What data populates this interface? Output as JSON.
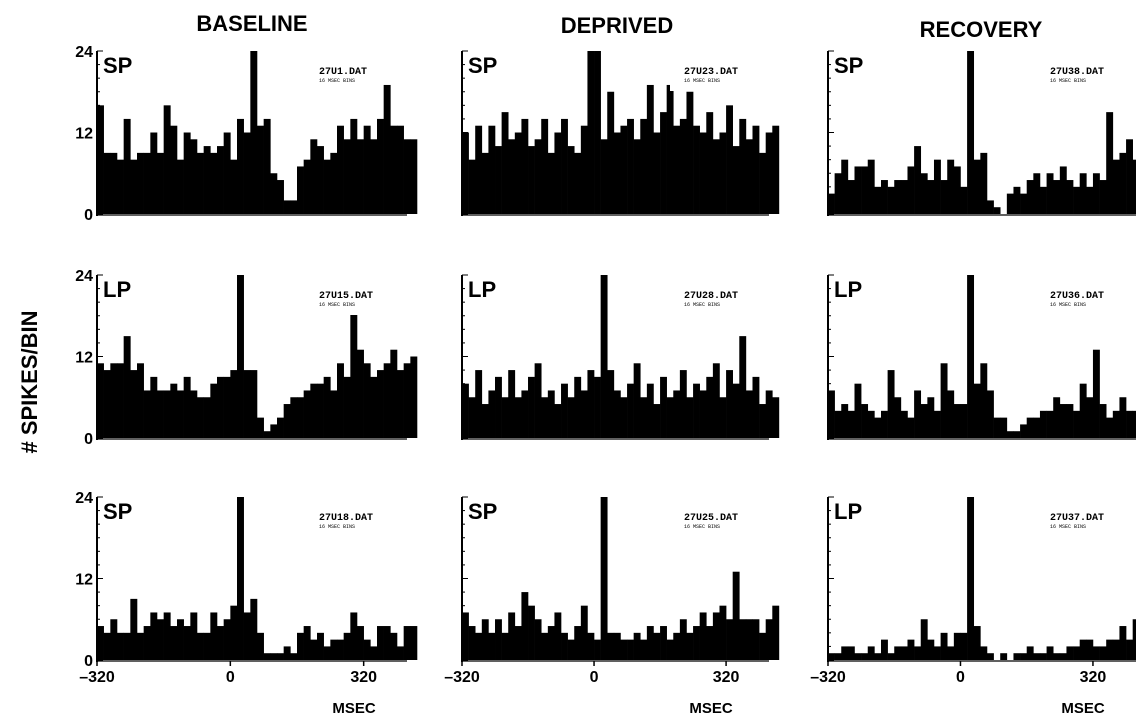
{
  "y_axis_label": "# SPIKES/BIN",
  "x_axis_label": "MSEC",
  "chart_data": [
    {
      "type": "bar",
      "column_title": "BASELINE",
      "condition": "SP",
      "file": "27U1.DAT",
      "bin_label": "16 MSEC BINS",
      "xlim": [
        -320,
        424
      ],
      "ylim": [
        0,
        24
      ],
      "yticks": [
        "0",
        "12",
        "24"
      ],
      "xticks": [],
      "bin_ms": 16,
      "values": [
        16,
        9,
        9,
        8,
        14,
        8,
        9,
        9,
        12,
        9,
        16,
        13,
        8,
        12,
        11,
        9,
        10,
        9,
        10,
        12,
        8,
        14,
        12,
        25,
        13,
        14,
        6,
        5,
        2,
        2,
        7,
        8,
        11,
        10,
        8,
        9,
        13,
        11,
        14,
        11,
        13,
        11,
        14,
        19,
        13,
        13,
        11,
        11
      ]
    },
    {
      "type": "bar",
      "column_title": "DEPRIVED",
      "condition": "SP",
      "file": "27U23.DAT",
      "bin_label": "16 MSEC BINS",
      "xlim": [
        -320,
        424
      ],
      "ylim": [
        0,
        24
      ],
      "yticks": [],
      "xticks": [],
      "bin_ms": 16,
      "values": [
        12,
        8,
        13,
        9,
        13,
        10,
        15,
        11,
        12,
        14,
        10,
        11,
        14,
        9,
        12,
        14,
        10,
        9,
        13,
        24,
        25,
        11,
        18,
        12,
        13,
        14,
        11,
        14,
        19,
        12,
        15,
        19,
        13,
        14,
        18,
        13,
        12,
        15,
        11,
        12,
        16,
        10,
        14,
        11,
        13,
        9,
        12,
        13
      ]
    },
    {
      "type": "bar",
      "column_title": "RECOVERY",
      "condition": "SP",
      "file": "27U38.DAT",
      "bin_label": "16 MSEC BINS",
      "xlim": [
        -320,
        424
      ],
      "ylim": [
        0,
        24
      ],
      "yticks": [],
      "xticks": [],
      "bin_ms": 16,
      "values": [
        3,
        6,
        8,
        5,
        7,
        7,
        8,
        4,
        5,
        4,
        5,
        5,
        7,
        10,
        6,
        5,
        8,
        5,
        8,
        7,
        4,
        25,
        8,
        9,
        2,
        1,
        0,
        3,
        4,
        3,
        5,
        6,
        4,
        6,
        5,
        7,
        5,
        4,
        6,
        4,
        6,
        5,
        15,
        8,
        9,
        11,
        8,
        10
      ]
    },
    {
      "type": "bar",
      "column_title": "BASELINE",
      "condition": "LP",
      "file": "27U15.DAT",
      "bin_label": "16 MSEC BINS",
      "xlim": [
        -320,
        424
      ],
      "ylim": [
        0,
        24
      ],
      "yticks": [
        "0",
        "12",
        "24"
      ],
      "xticks": [],
      "bin_ms": 16,
      "values": [
        11,
        10,
        11,
        11,
        15,
        10,
        11,
        7,
        9,
        7,
        7,
        8,
        7,
        9,
        7,
        6,
        6,
        8,
        9,
        9,
        10,
        25,
        10,
        10,
        3,
        1,
        2,
        3,
        5,
        6,
        6,
        7,
        8,
        8,
        9,
        7,
        11,
        9,
        21,
        13,
        11,
        9,
        10,
        11,
        13,
        10,
        11,
        12
      ]
    },
    {
      "type": "bar",
      "column_title": "DEPRIVED",
      "condition": "LP",
      "file": "27U28.DAT",
      "bin_label": "16 MSEC BINS",
      "xlim": [
        -320,
        424
      ],
      "ylim": [
        0,
        24
      ],
      "yticks": [],
      "xticks": [],
      "bin_ms": 16,
      "values": [
        8,
        6,
        10,
        5,
        7,
        9,
        6,
        10,
        6,
        7,
        9,
        11,
        6,
        7,
        5,
        8,
        6,
        9,
        7,
        10,
        9,
        25,
        10,
        7,
        6,
        8,
        11,
        6,
        8,
        5,
        9,
        6,
        7,
        10,
        6,
        8,
        7,
        9,
        11,
        6,
        10,
        8,
        15,
        7,
        9,
        5,
        7,
        6
      ]
    },
    {
      "type": "bar",
      "column_title": "RECOVERY",
      "condition": "LP",
      "file": "27U36.DAT",
      "bin_label": "16 MSEC BINS",
      "xlim": [
        -320,
        424
      ],
      "ylim": [
        0,
        24
      ],
      "yticks": [],
      "xticks": [],
      "bin_ms": 16,
      "values": [
        7,
        4,
        5,
        4,
        8,
        5,
        4,
        3,
        4,
        10,
        6,
        4,
        3,
        7,
        5,
        6,
        4,
        11,
        7,
        5,
        5,
        25,
        8,
        11,
        7,
        3,
        3,
        1,
        1,
        2,
        3,
        3,
        4,
        4,
        6,
        5,
        5,
        4,
        8,
        6,
        13,
        5,
        3,
        4,
        6,
        4,
        4,
        5
      ]
    },
    {
      "type": "bar",
      "column_title": "BASELINE",
      "condition": "SP",
      "file": "27U18.DAT",
      "bin_label": "16 MSEC BINS",
      "xlim": [
        -320,
        424
      ],
      "ylim": [
        0,
        24
      ],
      "yticks": [
        "0",
        "12",
        "24"
      ],
      "xticks": [
        "-320",
        "0",
        "320"
      ],
      "bin_ms": 16,
      "values": [
        5,
        4,
        6,
        4,
        4,
        9,
        4,
        5,
        7,
        6,
        7,
        5,
        6,
        5,
        7,
        4,
        4,
        7,
        5,
        6,
        8,
        24,
        7,
        9,
        4,
        1,
        1,
        1,
        2,
        1,
        4,
        5,
        3,
        4,
        2,
        3,
        3,
        4,
        7,
        5,
        3,
        2,
        5,
        5,
        4,
        2,
        5,
        5
      ]
    },
    {
      "type": "bar",
      "column_title": "DEPRIVED",
      "condition": "SP",
      "file": "27U25.DAT",
      "bin_label": "16 MSEC BINS",
      "xlim": [
        -320,
        424
      ],
      "ylim": [
        0,
        24
      ],
      "yticks": [],
      "xticks": [
        "-320",
        "0",
        "320"
      ],
      "bin_ms": 16,
      "values": [
        7,
        5,
        4,
        6,
        4,
        6,
        4,
        7,
        5,
        10,
        8,
        6,
        4,
        5,
        7,
        4,
        3,
        5,
        8,
        4,
        3,
        24,
        4,
        4,
        3,
        3,
        4,
        3,
        5,
        4,
        5,
        3,
        4,
        6,
        4,
        5,
        7,
        5,
        7,
        8,
        6,
        13,
        6,
        6,
        6,
        4,
        6,
        8
      ]
    },
    {
      "type": "bar",
      "column_title": "RECOVERY",
      "condition": "LP",
      "file": "27U37.DAT",
      "bin_label": "16 MSEC BINS",
      "xlim": [
        -320,
        424
      ],
      "ylim": [
        0,
        24
      ],
      "yticks": [],
      "xticks": [
        "-320",
        "0",
        "320"
      ],
      "bin_ms": 16,
      "values": [
        1,
        1,
        2,
        2,
        1,
        1,
        2,
        1,
        3,
        1,
        2,
        2,
        3,
        2,
        6,
        3,
        2,
        4,
        2,
        4,
        4,
        25,
        5,
        2,
        1,
        0,
        1,
        0,
        1,
        1,
        2,
        1,
        1,
        2,
        1,
        1,
        2,
        2,
        3,
        3,
        2,
        2,
        3,
        3,
        5,
        3,
        6,
        5
      ]
    }
  ]
}
